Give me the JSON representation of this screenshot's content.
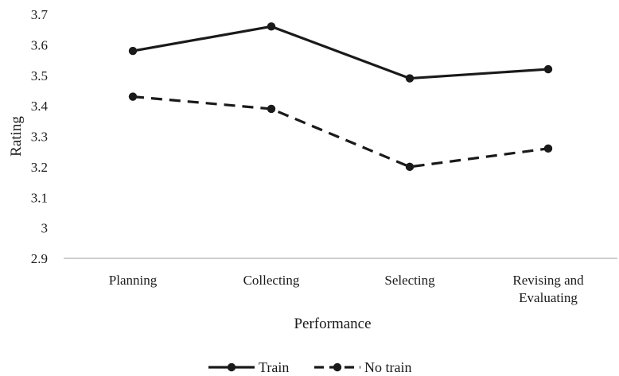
{
  "chart_data": {
    "type": "line",
    "categories": [
      "Planning",
      "Collecting",
      "Selecting",
      "Revising and Evaluating"
    ],
    "category_label_lines": [
      [
        "Planning"
      ],
      [
        "Collecting"
      ],
      [
        "Selecting"
      ],
      [
        "Revising and",
        "Evaluating"
      ]
    ],
    "series": [
      {
        "name": "Train",
        "values": [
          3.58,
          3.66,
          3.49,
          3.52
        ],
        "color": "#1a1a1a",
        "dash": "solid"
      },
      {
        "name": "No train",
        "values": [
          3.43,
          3.39,
          3.2,
          3.26
        ],
        "color": "#1a1a1a",
        "dash": "dashed"
      }
    ],
    "xlabel": "Performance",
    "ylabel": "Rating",
    "ylim": [
      2.9,
      3.7
    ],
    "yticks": [
      2.9,
      3.0,
      3.1,
      3.2,
      3.3,
      3.4,
      3.5,
      3.6,
      3.7
    ],
    "ytick_labels": [
      "2.9",
      "3",
      "3.1",
      "3.2",
      "3.3",
      "3.4",
      "3.5",
      "3.6",
      "3.7"
    ],
    "grid": false,
    "legend_position": "bottom"
  }
}
